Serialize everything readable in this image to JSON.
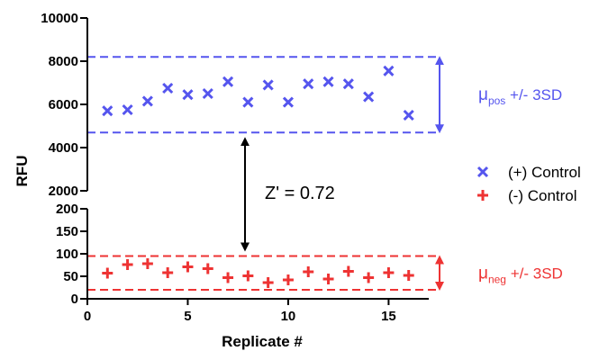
{
  "chart_data": {
    "type": "scatter",
    "xlabel": "Replicate #",
    "ylabel": "RFU",
    "xlim": [
      0,
      17
    ],
    "xticks": [
      0,
      5,
      10,
      15
    ],
    "y_axis_segments": {
      "upper": {
        "ylim": [
          2000,
          10000
        ],
        "ticks": [
          2000,
          4000,
          6000,
          8000,
          10000
        ]
      },
      "lower": {
        "ylim": [
          0,
          200
        ],
        "ticks": [
          0,
          50,
          100,
          150,
          200
        ]
      }
    },
    "series": [
      {
        "name": "(+) Control",
        "marker": "x",
        "color": "#5555ee",
        "x": [
          1,
          2,
          3,
          4,
          5,
          6,
          7,
          8,
          9,
          10,
          11,
          12,
          13,
          14,
          15,
          16
        ],
        "y": [
          5700,
          5750,
          6150,
          6750,
          6450,
          6500,
          7050,
          6100,
          6900,
          6100,
          6950,
          7050,
          6950,
          6350,
          7550,
          5500
        ]
      },
      {
        "name": "(-) Control",
        "marker": "+",
        "color": "#ee3333",
        "x": [
          1,
          2,
          3,
          4,
          5,
          6,
          7,
          8,
          9,
          10,
          11,
          12,
          13,
          14,
          15,
          16
        ],
        "y": [
          57,
          76,
          78,
          58,
          71,
          67,
          47,
          51,
          36,
          42,
          60,
          44,
          61,
          47,
          58,
          52
        ]
      }
    ],
    "bands": [
      {
        "label_base": "μ",
        "label_sub": "pos",
        "label_rest": " +/- 3SD",
        "upper": 8200,
        "lower": 4700,
        "color": "#5555ee",
        "segment": "upper"
      },
      {
        "label_base": "μ",
        "label_sub": "neg",
        "label_rest": " +/- 3SD",
        "upper": 95,
        "lower": 20,
        "color": "#ee3333",
        "segment": "lower"
      }
    ],
    "annotation": {
      "text": "Z' = 0.72"
    },
    "legend": {
      "placement": "right",
      "items": [
        "(+) Control",
        "(-) Control"
      ]
    }
  }
}
